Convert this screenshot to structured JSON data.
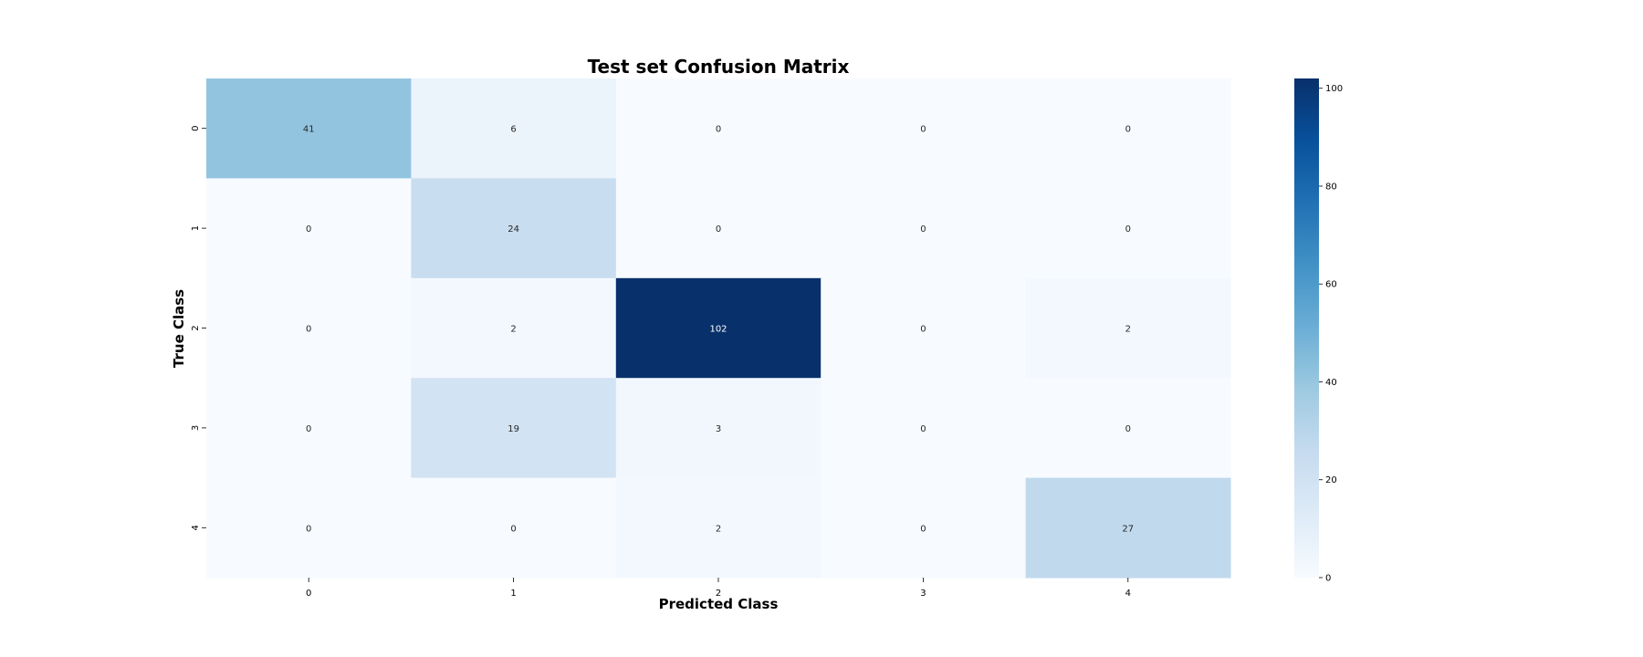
{
  "chart_data": {
    "type": "heatmap",
    "title": "Test set Confusion Matrix",
    "xlabel": "Predicted Class",
    "ylabel": "True Class",
    "x_categories": [
      "0",
      "1",
      "2",
      "3",
      "4"
    ],
    "y_categories": [
      "0",
      "1",
      "2",
      "3",
      "4"
    ],
    "values": [
      [
        41,
        6,
        0,
        0,
        0
      ],
      [
        0,
        24,
        0,
        0,
        0
      ],
      [
        0,
        2,
        102,
        0,
        2
      ],
      [
        0,
        19,
        3,
        0,
        0
      ],
      [
        0,
        0,
        2,
        0,
        27
      ]
    ],
    "colormap": "Blues",
    "colorbar": {
      "range": [
        0,
        102
      ],
      "ticks": [
        0,
        20,
        40,
        60,
        80,
        100
      ]
    },
    "colors": {
      "low": "#f7fbff",
      "high": "#08306b"
    }
  }
}
